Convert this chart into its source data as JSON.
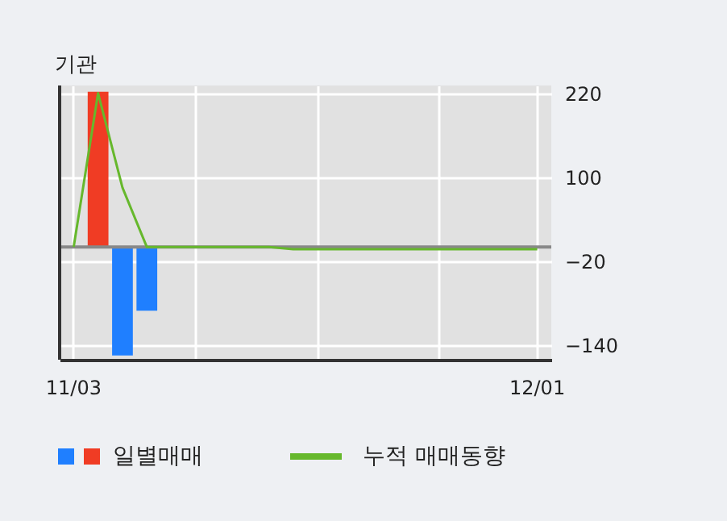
{
  "chart_data": {
    "type": "bar",
    "title": "기관",
    "categories": [
      "11/03",
      null,
      null,
      null,
      null,
      null,
      null,
      null,
      null,
      null,
      null,
      null,
      null,
      null,
      null,
      null,
      null,
      null,
      null,
      "12/01"
    ],
    "series": [
      {
        "name": "일별매매",
        "values": [
          null,
          222,
          -155,
          -91,
          null,
          null,
          null,
          null,
          null,
          null,
          null,
          null,
          null,
          null,
          null,
          null,
          null,
          null,
          null,
          null
        ],
        "colors": [
          null,
          "#f03c24",
          "#1f7fff",
          "#1f7fff",
          null,
          null,
          null,
          null,
          null,
          null,
          null,
          null,
          null,
          null,
          null,
          null,
          null,
          null,
          null,
          null
        ]
      },
      {
        "type": "line",
        "name": "누적 매매동향",
        "color": "#66b82c",
        "values": [
          0,
          220,
          85,
          0,
          0,
          0,
          0,
          0,
          0,
          -3,
          -3,
          -3,
          -3,
          -3,
          -3,
          -3,
          -3,
          -3,
          -3,
          -3
        ]
      }
    ],
    "ylim": [
      -161,
      231
    ],
    "yticks": [
      220,
      100,
      -20,
      -140
    ],
    "ref_lines": [
      {
        "axis": "y",
        "value": 0,
        "color": "#888888"
      }
    ],
    "grid": true,
    "legend": "bottom"
  }
}
